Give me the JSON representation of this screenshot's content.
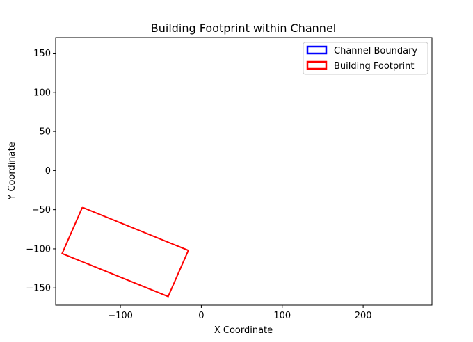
{
  "chart_data": {
    "type": "line",
    "title": "Building Footprint within Channel",
    "xlabel": "X Coordinate",
    "ylabel": "Y Coordinate",
    "xlim": [
      -180,
      285
    ],
    "ylim": [
      -172,
      170
    ],
    "xticks": [
      -100,
      0,
      100,
      200
    ],
    "xtick_labels": [
      "−100",
      "0",
      "100",
      "200"
    ],
    "yticks": [
      150,
      100,
      50,
      0,
      -50,
      -100,
      -150
    ],
    "ytick_labels": [
      "150",
      "100",
      "50",
      "0",
      "−50",
      "−100",
      "−150"
    ],
    "grid": false,
    "legend_position": "top-right",
    "series": [
      {
        "name": "Channel Boundary",
        "color": "#0000ff",
        "points": []
      },
      {
        "name": "Building Footprint",
        "color": "#ff0000",
        "closed": true,
        "points": [
          [
            -147,
            -47
          ],
          [
            -16,
            -102
          ],
          [
            -41,
            -161
          ],
          [
            -172,
            -106
          ],
          [
            -147,
            -47
          ]
        ]
      }
    ]
  }
}
